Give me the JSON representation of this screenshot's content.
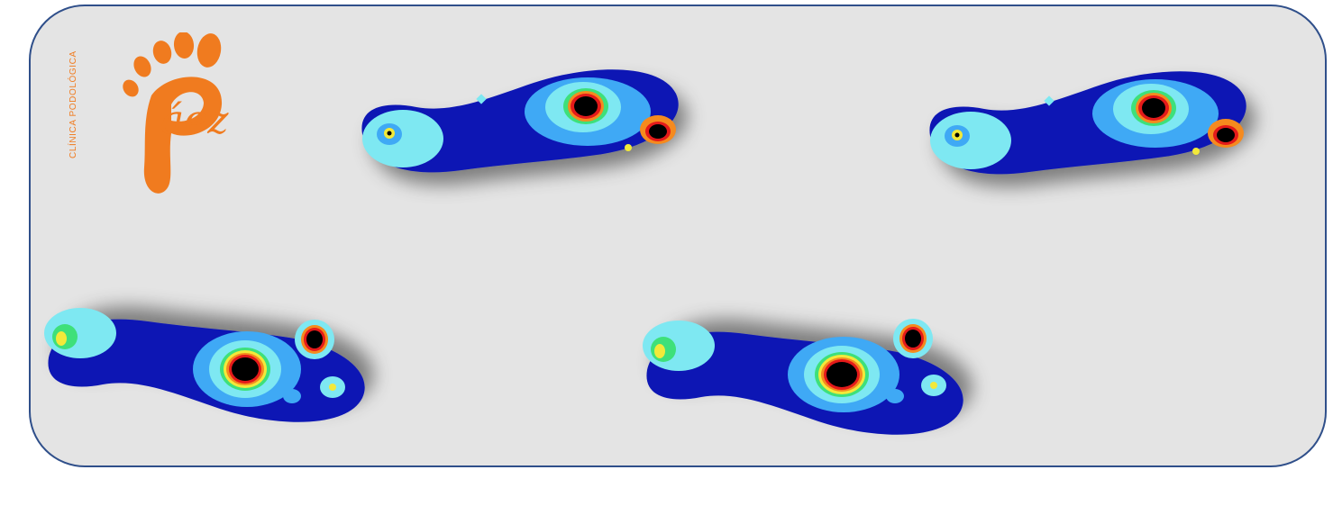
{
  "logo": {
    "vertical_text": "CLÍNICA PODOLÓGICA",
    "script_text": "áez",
    "brand_color": "#f07b1f"
  },
  "colors": {
    "panel_bg": "#e4e4e4",
    "panel_border": "#2f4f8a",
    "pressure_scale": [
      "#0a14b4",
      "#1e5be6",
      "#3fa9f5",
      "#7ee8f2",
      "#3ee07a",
      "#f2e93a",
      "#f58a1e",
      "#e41a1a",
      "#000000"
    ]
  }
}
